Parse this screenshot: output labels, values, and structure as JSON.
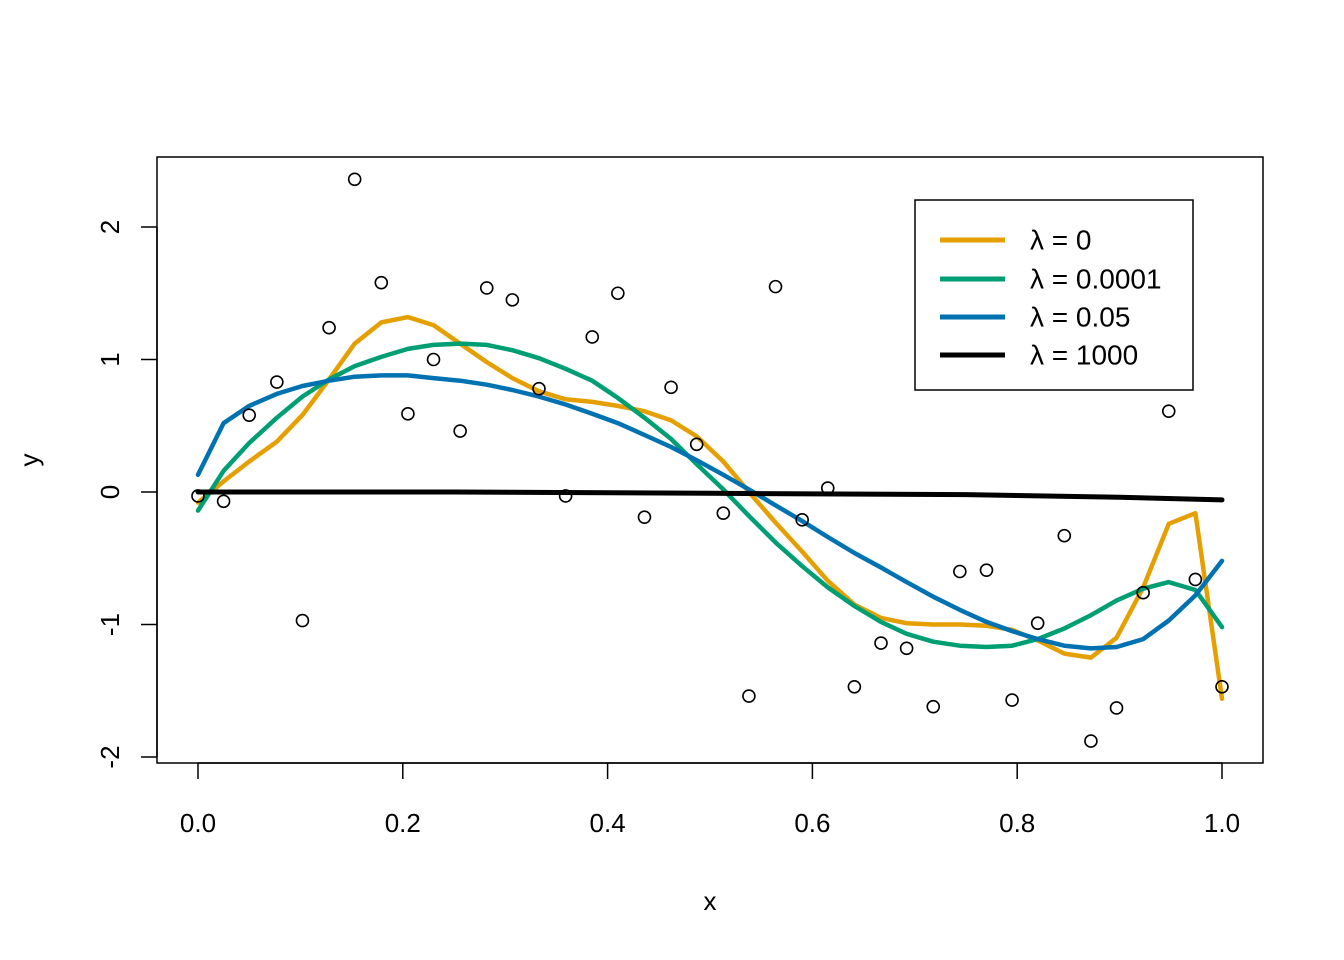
{
  "chart_data": {
    "type": "scatter",
    "xlabel": "x",
    "ylabel": "y",
    "xlim": [
      0,
      1
    ],
    "ylim": [
      -2,
      2.5
    ],
    "x_ticks": [
      {
        "value": 0.0,
        "label": "0.0"
      },
      {
        "value": 0.2,
        "label": "0.2"
      },
      {
        "value": 0.4,
        "label": "0.4"
      },
      {
        "value": 0.6,
        "label": "0.6"
      },
      {
        "value": 0.8,
        "label": "0.8"
      },
      {
        "value": 1.0,
        "label": "1.0"
      }
    ],
    "y_ticks": [
      {
        "value": -2,
        "label": "-2"
      },
      {
        "value": -1,
        "label": "-1"
      },
      {
        "value": 0,
        "label": "0"
      },
      {
        "value": 1,
        "label": "1"
      },
      {
        "value": 2,
        "label": "2"
      }
    ],
    "grid": false,
    "legend_position": "top-right",
    "points": [
      {
        "x": 0.0,
        "y": -0.03
      },
      {
        "x": 0.025,
        "y": -0.07
      },
      {
        "x": 0.05,
        "y": 0.58
      },
      {
        "x": 0.077,
        "y": 0.83
      },
      {
        "x": 0.102,
        "y": -0.97
      },
      {
        "x": 0.128,
        "y": 1.24
      },
      {
        "x": 0.153,
        "y": 2.36
      },
      {
        "x": 0.179,
        "y": 1.58
      },
      {
        "x": 0.205,
        "y": 0.59
      },
      {
        "x": 0.23,
        "y": 1.0
      },
      {
        "x": 0.256,
        "y": 0.46
      },
      {
        "x": 0.282,
        "y": 1.54
      },
      {
        "x": 0.307,
        "y": 1.45
      },
      {
        "x": 0.333,
        "y": 0.78
      },
      {
        "x": 0.359,
        "y": -0.03
      },
      {
        "x": 0.385,
        "y": 1.17
      },
      {
        "x": 0.41,
        "y": 1.5
      },
      {
        "x": 0.436,
        "y": -0.19
      },
      {
        "x": 0.462,
        "y": 0.79
      },
      {
        "x": 0.487,
        "y": 0.36
      },
      {
        "x": 0.513,
        "y": -0.16
      },
      {
        "x": 0.538,
        "y": -1.54
      },
      {
        "x": 0.564,
        "y": 1.55
      },
      {
        "x": 0.59,
        "y": -0.21
      },
      {
        "x": 0.615,
        "y": 0.03
      },
      {
        "x": 0.641,
        "y": -1.47
      },
      {
        "x": 0.667,
        "y": -1.14
      },
      {
        "x": 0.692,
        "y": -1.18
      },
      {
        "x": 0.718,
        "y": -1.62
      },
      {
        "x": 0.744,
        "y": -0.6
      },
      {
        "x": 0.77,
        "y": -0.59
      },
      {
        "x": 0.795,
        "y": -1.57
      },
      {
        "x": 0.82,
        "y": -0.99
      },
      {
        "x": 0.846,
        "y": -0.33
      },
      {
        "x": 0.872,
        "y": -1.88
      },
      {
        "x": 0.897,
        "y": -1.63
      },
      {
        "x": 0.923,
        "y": -0.76
      },
      {
        "x": 0.948,
        "y": 0.61
      },
      {
        "x": 0.974,
        "y": -0.66
      },
      {
        "x": 1.0,
        "y": -1.47
      }
    ],
    "series": [
      {
        "name": "λ = 0",
        "color": "#E69F00",
        "x": [
          0,
          0.025,
          0.05,
          0.077,
          0.102,
          0.128,
          0.153,
          0.179,
          0.205,
          0.23,
          0.256,
          0.282,
          0.307,
          0.333,
          0.359,
          0.385,
          0.41,
          0.436,
          0.462,
          0.487,
          0.513,
          0.538,
          0.564,
          0.59,
          0.615,
          0.641,
          0.667,
          0.692,
          0.718,
          0.744,
          0.77,
          0.795,
          0.82,
          0.846,
          0.872,
          0.897,
          0.923,
          0.948,
          0.974,
          1.0
        ],
        "y": [
          -0.08,
          0.08,
          0.23,
          0.38,
          0.58,
          0.85,
          1.12,
          1.28,
          1.32,
          1.26,
          1.12,
          0.98,
          0.86,
          0.76,
          0.7,
          0.68,
          0.65,
          0.61,
          0.54,
          0.42,
          0.23,
          0.0,
          -0.23,
          -0.45,
          -0.67,
          -0.85,
          -0.95,
          -0.99,
          -1.0,
          -1.0,
          -1.01,
          -1.04,
          -1.12,
          -1.22,
          -1.25,
          -1.1,
          -0.72,
          -0.24,
          -0.16,
          -1.56
        ]
      },
      {
        "name": "λ = 0.0001",
        "color": "#009E73",
        "x": [
          0,
          0.025,
          0.05,
          0.077,
          0.102,
          0.128,
          0.153,
          0.179,
          0.205,
          0.23,
          0.256,
          0.282,
          0.307,
          0.333,
          0.359,
          0.385,
          0.41,
          0.436,
          0.462,
          0.487,
          0.513,
          0.538,
          0.564,
          0.59,
          0.615,
          0.641,
          0.667,
          0.692,
          0.718,
          0.744,
          0.77,
          0.795,
          0.82,
          0.846,
          0.872,
          0.897,
          0.923,
          0.948,
          0.974,
          1.0
        ],
        "y": [
          -0.14,
          0.16,
          0.37,
          0.56,
          0.72,
          0.85,
          0.95,
          1.02,
          1.08,
          1.11,
          1.12,
          1.11,
          1.07,
          1.01,
          0.93,
          0.84,
          0.71,
          0.56,
          0.4,
          0.21,
          0.02,
          -0.18,
          -0.38,
          -0.56,
          -0.72,
          -0.86,
          -0.98,
          -1.07,
          -1.13,
          -1.16,
          -1.17,
          -1.16,
          -1.11,
          -1.03,
          -0.93,
          -0.82,
          -0.73,
          -0.68,
          -0.74,
          -1.02
        ]
      },
      {
        "name": "λ = 0.05",
        "color": "#0072B2",
        "x": [
          0,
          0.025,
          0.05,
          0.077,
          0.102,
          0.128,
          0.153,
          0.179,
          0.205,
          0.23,
          0.256,
          0.282,
          0.307,
          0.333,
          0.359,
          0.385,
          0.41,
          0.436,
          0.462,
          0.487,
          0.513,
          0.538,
          0.564,
          0.59,
          0.615,
          0.641,
          0.667,
          0.692,
          0.718,
          0.744,
          0.77,
          0.795,
          0.82,
          0.846,
          0.872,
          0.897,
          0.923,
          0.948,
          0.974,
          1.0
        ],
        "y": [
          0.13,
          0.52,
          0.65,
          0.74,
          0.8,
          0.84,
          0.87,
          0.88,
          0.88,
          0.86,
          0.84,
          0.81,
          0.77,
          0.72,
          0.66,
          0.59,
          0.52,
          0.43,
          0.34,
          0.24,
          0.13,
          0.02,
          -0.1,
          -0.22,
          -0.34,
          -0.46,
          -0.57,
          -0.68,
          -0.79,
          -0.89,
          -0.98,
          -1.05,
          -1.11,
          -1.16,
          -1.18,
          -1.17,
          -1.11,
          -0.97,
          -0.78,
          -0.52
        ]
      },
      {
        "name": "λ = 1000",
        "color": "#000000",
        "x": [
          0,
          0.25,
          0.5,
          0.75,
          0.9,
          1.0
        ],
        "y": [
          0.0,
          0.0,
          -0.01,
          -0.02,
          -0.04,
          -0.06
        ]
      }
    ]
  }
}
